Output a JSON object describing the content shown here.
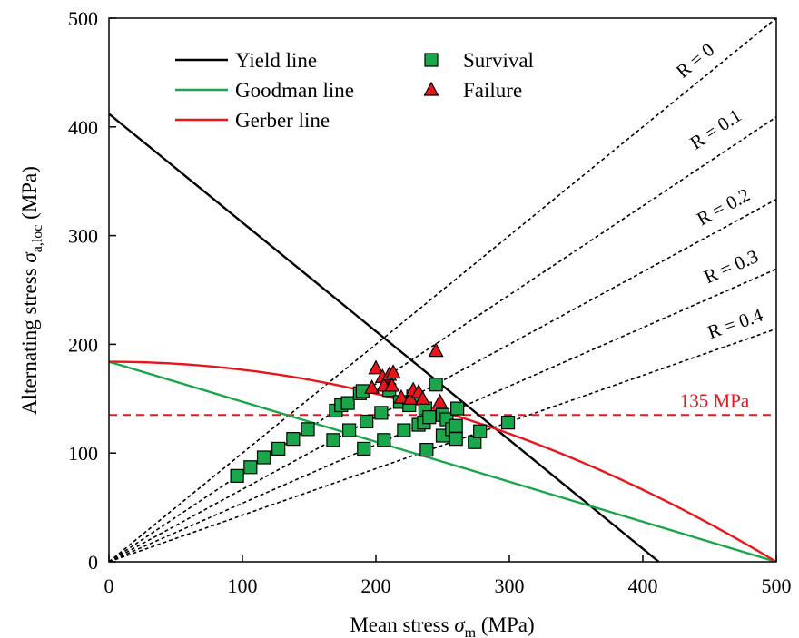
{
  "chart_data": {
    "type": "scatter",
    "title": "",
    "xlabel": "Mean stress",
    "xlabel_symbol": "σ",
    "xlabel_sub": "m",
    "xlabel_unit": "(MPa)",
    "ylabel": "Alternating stress",
    "ylabel_symbol": "σ",
    "ylabel_sub": "a,loc",
    "ylabel_unit": "(MPa)",
    "xlim": [
      0,
      500
    ],
    "ylim": [
      0,
      500
    ],
    "xticks": [
      0,
      100,
      200,
      300,
      400,
      500
    ],
    "yticks": [
      0,
      100,
      200,
      300,
      400,
      500
    ],
    "grid": false,
    "legend_position": "top-left",
    "colors": {
      "yield": "#000000",
      "goodman": "#1aa64a",
      "gerber": "#e8161b",
      "survival_fill": "#1aa64a",
      "failure_fill": "#e8161b",
      "threshold": "#e8161b",
      "ratio_lines": "#000000"
    },
    "lines": [
      {
        "name": "Yield line",
        "key": "yield",
        "points": [
          [
            0,
            412
          ],
          [
            412,
            0
          ]
        ]
      },
      {
        "name": "Goodman line",
        "key": "goodman",
        "points": [
          [
            0,
            184
          ],
          [
            500,
            0
          ]
        ]
      },
      {
        "name": "Gerber line",
        "key": "gerber",
        "y_intercept": 184,
        "x_intercept": 500
      }
    ],
    "threshold": {
      "value": 135,
      "label": "135 MPa"
    },
    "ratio_lines": [
      {
        "label": "R = 0",
        "R": 0
      },
      {
        "label": "R = 0.1",
        "R": 0.1
      },
      {
        "label": "R = 0.2",
        "R": 0.2
      },
      {
        "label": "R = 0.3",
        "R": 0.3
      },
      {
        "label": "R = 0.4",
        "R": 0.4
      }
    ],
    "series": [
      {
        "name": "Survival",
        "marker": "square",
        "points": [
          [
            96,
            79
          ],
          [
            106,
            87
          ],
          [
            116,
            96
          ],
          [
            127,
            104
          ],
          [
            138,
            113
          ],
          [
            149,
            122
          ],
          [
            168,
            112
          ],
          [
            170,
            139
          ],
          [
            174,
            144
          ],
          [
            179,
            146
          ],
          [
            180,
            121
          ],
          [
            188,
            155
          ],
          [
            190,
            157
          ],
          [
            191,
            104
          ],
          [
            193,
            129
          ],
          [
            204,
            137
          ],
          [
            206,
            112
          ],
          [
            210,
            158
          ],
          [
            218,
            147
          ],
          [
            221,
            121
          ],
          [
            225,
            144
          ],
          [
            228,
            152
          ],
          [
            232,
            126
          ],
          [
            236,
            128
          ],
          [
            237,
            141
          ],
          [
            238,
            103
          ],
          [
            240,
            133
          ],
          [
            245,
            163
          ],
          [
            250,
            116
          ],
          [
            250,
            135
          ],
          [
            253,
            131
          ],
          [
            257,
            122
          ],
          [
            260,
            113
          ],
          [
            260,
            125
          ],
          [
            261,
            141
          ],
          [
            274,
            110
          ],
          [
            278,
            120
          ],
          [
            299,
            128
          ]
        ]
      },
      {
        "name": "Failure",
        "marker": "triangle",
        "points": [
          [
            197,
            160
          ],
          [
            200,
            178
          ],
          [
            205,
            170
          ],
          [
            206,
            162
          ],
          [
            210,
            172
          ],
          [
            212,
            162
          ],
          [
            213,
            174
          ],
          [
            219,
            151
          ],
          [
            226,
            150
          ],
          [
            228,
            158
          ],
          [
            232,
            156
          ],
          [
            235,
            150
          ],
          [
            245,
            194
          ],
          [
            248,
            147
          ]
        ]
      }
    ]
  }
}
